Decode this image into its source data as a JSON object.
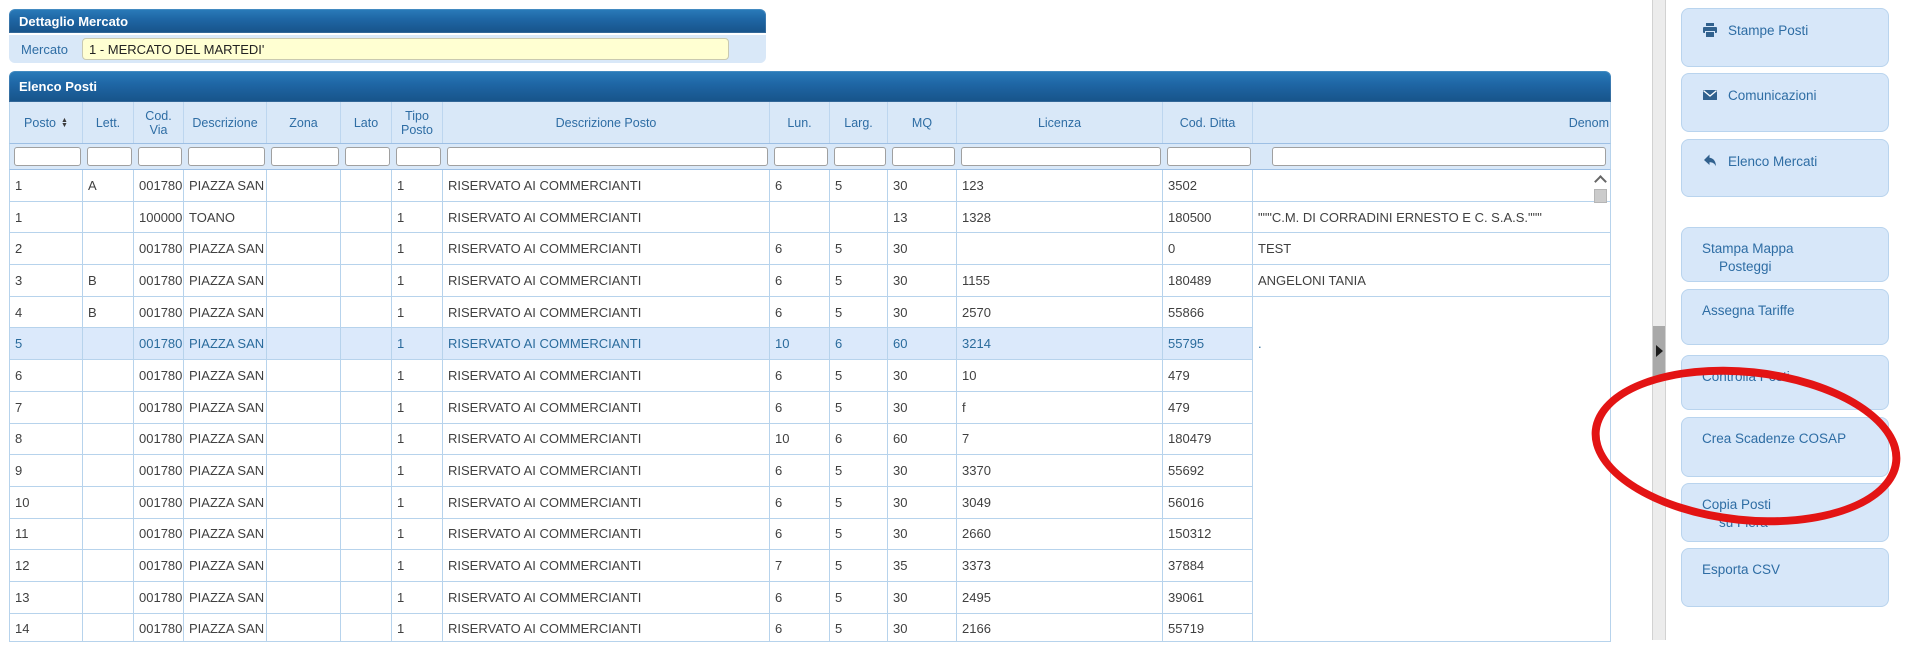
{
  "dettaglio": {
    "title": "Dettaglio Mercato",
    "mercato_label": "Mercato",
    "mercato_value": "1 - MERCATO DEL MARTEDI'"
  },
  "elenco": {
    "title": "Elenco Posti",
    "columns": [
      {
        "label": "Posto",
        "sortable": true
      },
      {
        "label": "Lett."
      },
      {
        "label": "Cod. Via"
      },
      {
        "label": "Descrizione"
      },
      {
        "label": "Zona"
      },
      {
        "label": "Lato"
      },
      {
        "label": "Tipo Posto"
      },
      {
        "label": "Descrizione Posto"
      },
      {
        "label": "Lun."
      },
      {
        "label": "Larg."
      },
      {
        "label": "MQ"
      },
      {
        "label": "Licenza"
      },
      {
        "label": "Cod. Ditta"
      },
      {
        "label": "Denom"
      }
    ],
    "rows": [
      {
        "selected": false,
        "cells": [
          "1",
          "A",
          "001780",
          "PIAZZA SAN GIO",
          "",
          "",
          "1",
          "RISERVATO AI COMMERCIANTI",
          "6",
          "5",
          "30",
          "123",
          "3502",
          ""
        ]
      },
      {
        "selected": false,
        "cells": [
          "1",
          "",
          "100000",
          "TOANO",
          "",
          "",
          "1",
          "RISERVATO AI COMMERCIANTI",
          "",
          "",
          "13",
          "1328",
          "180500",
          "\"\"\"C.M. DI CORRADINI ERNESTO E C. S.A.S.\"\"\""
        ]
      },
      {
        "selected": false,
        "cells": [
          "2",
          "",
          "001780",
          "PIAZZA SAN GIO",
          "",
          "",
          "1",
          "RISERVATO AI COMMERCIANTI",
          "6",
          "5",
          "30",
          "",
          "0",
          "TEST"
        ]
      },
      {
        "selected": false,
        "cells": [
          "3",
          "B",
          "001780",
          "PIAZZA SAN GIO",
          "",
          "",
          "1",
          "RISERVATO AI COMMERCIANTI",
          "6",
          "5",
          "30",
          "1155",
          "180489",
          "ANGELONI TANIA"
        ]
      },
      {
        "selected": false,
        "cells": [
          "4",
          "B",
          "001780",
          "PIAZZA SAN GIO",
          "",
          "",
          "1",
          "RISERVATO AI COMMERCIANTI",
          "6",
          "5",
          "30",
          "2570",
          "55866",
          ""
        ]
      },
      {
        "selected": true,
        "cells": [
          "5",
          "",
          "001780",
          "PIAZZA SAN GIO",
          "",
          "",
          "1",
          "RISERVATO AI COMMERCIANTI",
          "10",
          "6",
          "60",
          "3214",
          "55795",
          "."
        ]
      },
      {
        "selected": false,
        "cells": [
          "6",
          "",
          "001780",
          "PIAZZA SAN GIO",
          "",
          "",
          "1",
          "RISERVATO AI COMMERCIANTI",
          "6",
          "5",
          "30",
          "10",
          "479",
          ""
        ]
      },
      {
        "selected": false,
        "cells": [
          "7",
          "",
          "001780",
          "PIAZZA SAN GIO",
          "",
          "",
          "1",
          "RISERVATO AI COMMERCIANTI",
          "6",
          "5",
          "30",
          "f",
          "479",
          ""
        ]
      },
      {
        "selected": false,
        "cells": [
          "8",
          "",
          "001780",
          "PIAZZA SAN GIO",
          "",
          "",
          "1",
          "RISERVATO AI COMMERCIANTI",
          "10",
          "6",
          "60",
          "7",
          "180479",
          ""
        ]
      },
      {
        "selected": false,
        "cells": [
          "9",
          "",
          "001780",
          "PIAZZA SAN GIO",
          "",
          "",
          "1",
          "RISERVATO AI COMMERCIANTI",
          "6",
          "5",
          "30",
          "3370",
          "55692",
          ""
        ]
      },
      {
        "selected": false,
        "cells": [
          "10",
          "",
          "001780",
          "PIAZZA SAN GIO",
          "",
          "",
          "1",
          "RISERVATO AI COMMERCIANTI",
          "6",
          "5",
          "30",
          "3049",
          "56016",
          ""
        ]
      },
      {
        "selected": false,
        "cells": [
          "11",
          "",
          "001780",
          "PIAZZA SAN GIO",
          "",
          "",
          "1",
          "RISERVATO AI COMMERCIANTI",
          "6",
          "5",
          "30",
          "2660",
          "150312",
          ""
        ]
      },
      {
        "selected": false,
        "cells": [
          "12",
          "",
          "001780",
          "PIAZZA SAN GIO",
          "",
          "",
          "1",
          "RISERVATO AI COMMERCIANTI",
          "7",
          "5",
          "35",
          "3373",
          "37884",
          ""
        ]
      },
      {
        "selected": false,
        "cells": [
          "13",
          "",
          "001780",
          "PIAZZA SAN GIO",
          "",
          "",
          "1",
          "RISERVATO AI COMMERCIANTI",
          "6",
          "5",
          "30",
          "2495",
          "39061",
          ""
        ]
      },
      {
        "selected": false,
        "cells": [
          "14",
          "",
          "001780",
          "PIAZZA SAN GIO",
          "",
          "",
          "1",
          "RISERVATO AI COMMERCIANTI",
          "6",
          "5",
          "30",
          "2166",
          "55719",
          ""
        ]
      }
    ]
  },
  "sidebar": {
    "buttons": [
      {
        "icon": "printer-icon",
        "lines": [
          "Stampe Posti"
        ]
      },
      {
        "icon": "envelope-icon",
        "lines": [
          "Comunicazioni"
        ]
      },
      {
        "icon": "undo-icon",
        "lines": [
          "Elenco Mercati"
        ]
      },
      {
        "lines": [
          "Stampa Mappa",
          "Posteggi"
        ]
      },
      {
        "lines": [
          "Assegna Tariffe"
        ]
      },
      {
        "lines": [
          "Controlla Posti"
        ]
      },
      {
        "lines": [
          "Crea Scadenze COSAP"
        ]
      },
      {
        "lines": [
          "Copia Posti",
          "su Fiera"
        ]
      },
      {
        "lines": [
          "Esporta CSV"
        ]
      }
    ]
  },
  "annotation": {
    "shape": "ellipse",
    "target": "Crea Scadenze COSAP",
    "color": "#e31414"
  },
  "colors": {
    "title_bar_blue": "#1f67a6",
    "panel_light_blue": "#d9e8f8",
    "grid_line_blue": "#b7d3ec",
    "link_blue": "#2e6da4",
    "selected_row_bg": "#dbe9fb",
    "field_yellow": "#ffffd2",
    "annotation_red": "#e31414"
  }
}
